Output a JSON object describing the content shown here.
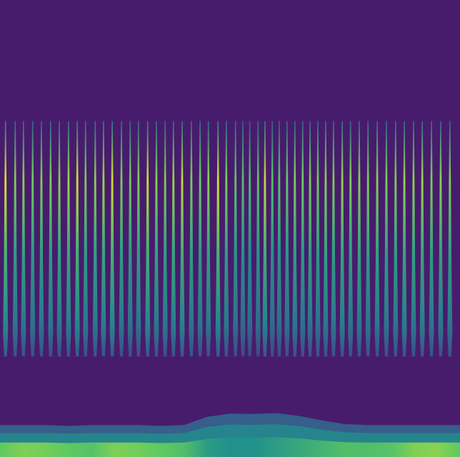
{
  "chart_data": {
    "type": "spectrogram",
    "tick_labels": false,
    "xlim": [
      0,
      1
    ],
    "ylim": [
      0,
      1
    ],
    "color_range": [
      0,
      1
    ],
    "pulse_band": [
      0.22,
      0.735
    ],
    "pulses": [
      0.012,
      0.033,
      0.051,
      0.071,
      0.09,
      0.11,
      0.129,
      0.149,
      0.168,
      0.186,
      0.207,
      0.225,
      0.244,
      0.264,
      0.283,
      0.301,
      0.321,
      0.34,
      0.359,
      0.377,
      0.396,
      0.416,
      0.435,
      0.453,
      0.474,
      0.492,
      0.512,
      0.528,
      0.543,
      0.561,
      0.576,
      0.592,
      0.607,
      0.624,
      0.641,
      0.658,
      0.674,
      0.691,
      0.708,
      0.725,
      0.744,
      0.762,
      0.781,
      0.8,
      0.82,
      0.84,
      0.86,
      0.879,
      0.899,
      0.918,
      0.938,
      0.958,
      0.978
    ],
    "peaks": [
      0.95,
      0.8,
      0.82,
      0.78,
      0.8,
      0.8,
      0.82,
      0.85,
      0.93,
      0.8,
      0.82,
      0.85,
      0.93,
      0.8,
      0.78,
      0.8,
      0.92,
      0.82,
      0.8,
      0.85,
      0.9,
      0.8,
      0.78,
      0.82,
      0.94,
      0.8,
      0.75,
      0.72,
      0.7,
      0.74,
      0.9,
      0.72,
      0.74,
      0.76,
      0.8,
      0.78,
      0.8,
      0.78,
      0.82,
      0.8,
      0.84,
      0.8,
      0.82,
      0.8,
      0.82,
      0.8,
      0.8,
      0.84,
      0.82,
      0.85,
      0.8,
      0.82,
      0.8
    ],
    "band": {
      "x": [
        0,
        0.05,
        0.1,
        0.15,
        0.2,
        0.25,
        0.3,
        0.35,
        0.4,
        0.45,
        0.5,
        0.55,
        0.6,
        0.65,
        0.7,
        0.75,
        0.8,
        0.85,
        0.9,
        0.95,
        1
      ],
      "upper": [
        0.07,
        0.07,
        0.07,
        0.068,
        0.07,
        0.07,
        0.07,
        0.068,
        0.07,
        0.088,
        0.095,
        0.094,
        0.096,
        0.09,
        0.08,
        0.072,
        0.07,
        0.07,
        0.07,
        0.07,
        0.07
      ],
      "level": [
        0.75,
        0.8,
        0.78,
        0.75,
        0.72,
        0.8,
        0.78,
        0.75,
        0.7,
        0.55,
        0.5,
        0.5,
        0.55,
        0.6,
        0.65,
        0.7,
        0.7,
        0.72,
        0.8,
        0.82,
        0.75
      ]
    }
  }
}
